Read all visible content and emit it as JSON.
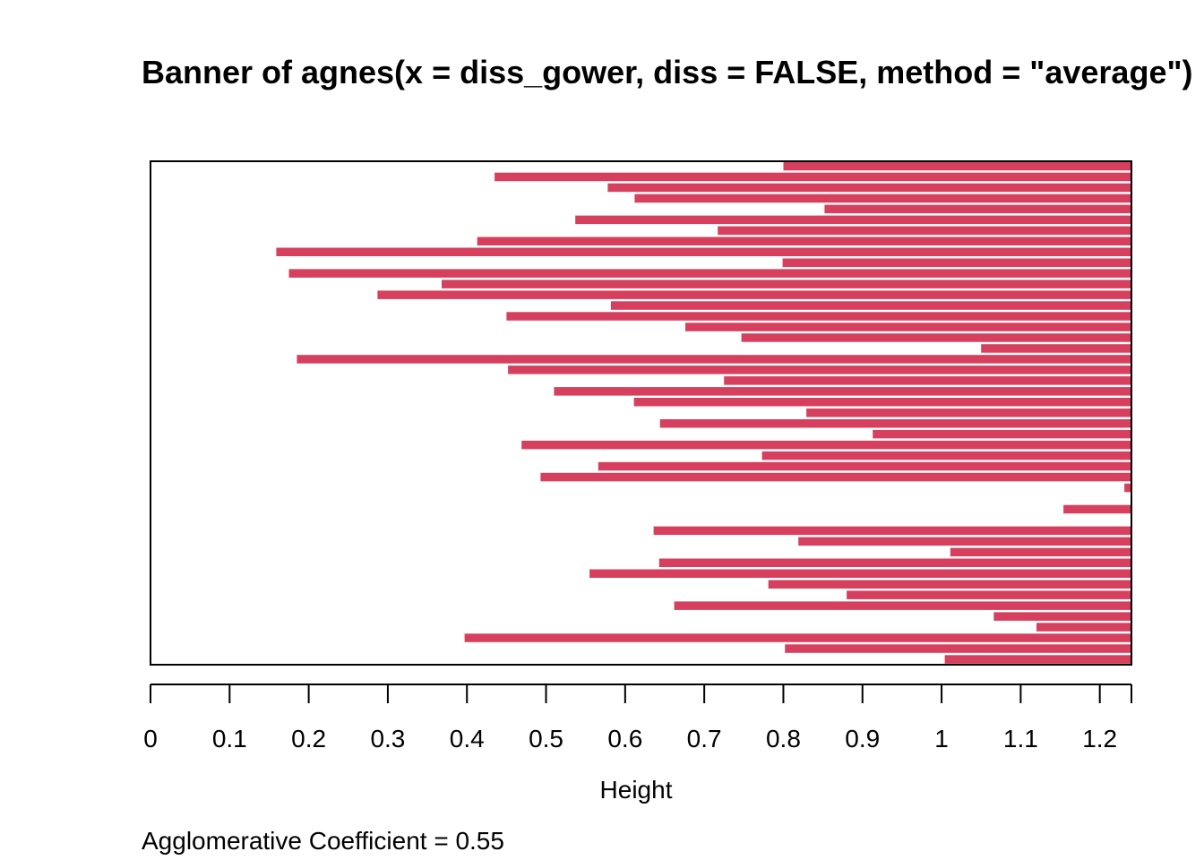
{
  "chart_data": {
    "type": "bar",
    "orientation": "horizontal",
    "title": "Banner of  agnes(x = diss_gower, diss = FALSE, method = \"average\")",
    "xlabel": "Height",
    "xlim": [
      0,
      1.24
    ],
    "x_ticks": [
      "0",
      "0.1",
      "0.2",
      "0.3",
      "0.4",
      "0.5",
      "0.6",
      "0.7",
      "0.8",
      "0.9",
      "1",
      "1.1",
      "1.2"
    ],
    "bar_color": "#D6405E",
    "banner_heights": [
      0.8,
      0.435,
      0.578,
      0.612,
      0.852,
      0.537,
      0.717,
      0.413,
      0.159,
      0.799,
      0.175,
      0.368,
      0.287,
      0.582,
      0.45,
      0.676,
      0.747,
      1.05,
      0.185,
      0.452,
      0.725,
      0.51,
      0.611,
      0.829,
      0.644,
      0.913,
      0.469,
      0.773,
      0.566,
      0.493,
      1.231,
      null,
      1.154,
      null,
      0.636,
      0.819,
      1.011,
      0.643,
      0.555,
      0.781,
      0.88,
      0.662,
      1.066,
      1.12,
      0.397,
      0.802,
      1.004
    ],
    "footer": "Agglomerative Coefficient =  0.55"
  }
}
